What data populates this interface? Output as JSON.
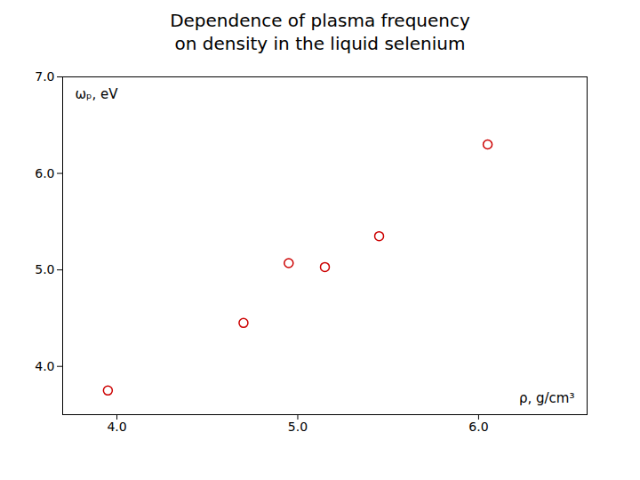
{
  "chart_data": {
    "type": "scatter",
    "title": "Dependence of plasma frequency\non density in the liquid selenium",
    "x_label": "ρ, g/cm³",
    "y_label": "ωₚ, eV",
    "x": [
      3.95,
      4.7,
      4.95,
      5.15,
      5.45,
      6.05
    ],
    "values": [
      3.75,
      4.45,
      5.07,
      5.03,
      5.35,
      6.3
    ],
    "color": "#CC0000",
    "marker": "circle",
    "xlim": [
      3.7,
      6.6
    ],
    "ylim": [
      3.5,
      7.0
    ],
    "xticks": [
      4,
      5,
      6
    ],
    "yticks": [
      4,
      5,
      6,
      7
    ],
    "grid": false
  }
}
